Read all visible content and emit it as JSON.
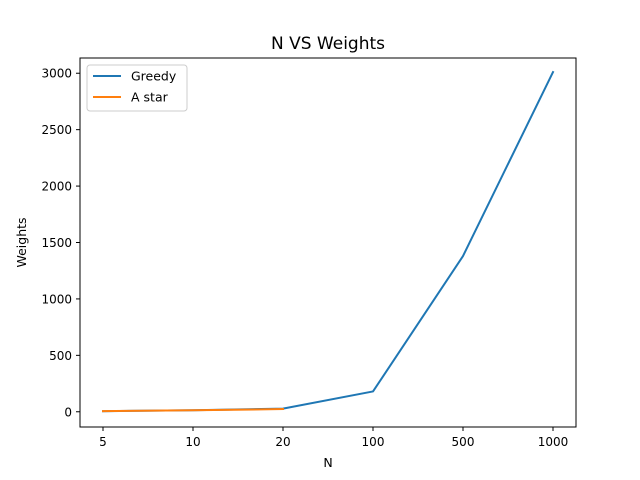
{
  "chart_data": {
    "type": "line",
    "title": "N VS Weights",
    "xlabel": "N",
    "ylabel": "Weights",
    "categories": [
      "5",
      "10",
      "20",
      "100",
      "500",
      "1000"
    ],
    "ylim": [
      -135,
      3135
    ],
    "yticks": [
      0,
      500,
      1000,
      1500,
      2000,
      2500,
      3000
    ],
    "grid": false,
    "legend_position": "top-left",
    "series": [
      {
        "name": "Greedy",
        "color": "#1f77b4",
        "values": [
          5,
          14,
          28,
          180,
          1380,
          3010
        ]
      },
      {
        "name": "A star",
        "color": "#ff7f0e",
        "values": [
          6,
          13,
          24,
          null,
          null,
          null
        ]
      }
    ]
  }
}
